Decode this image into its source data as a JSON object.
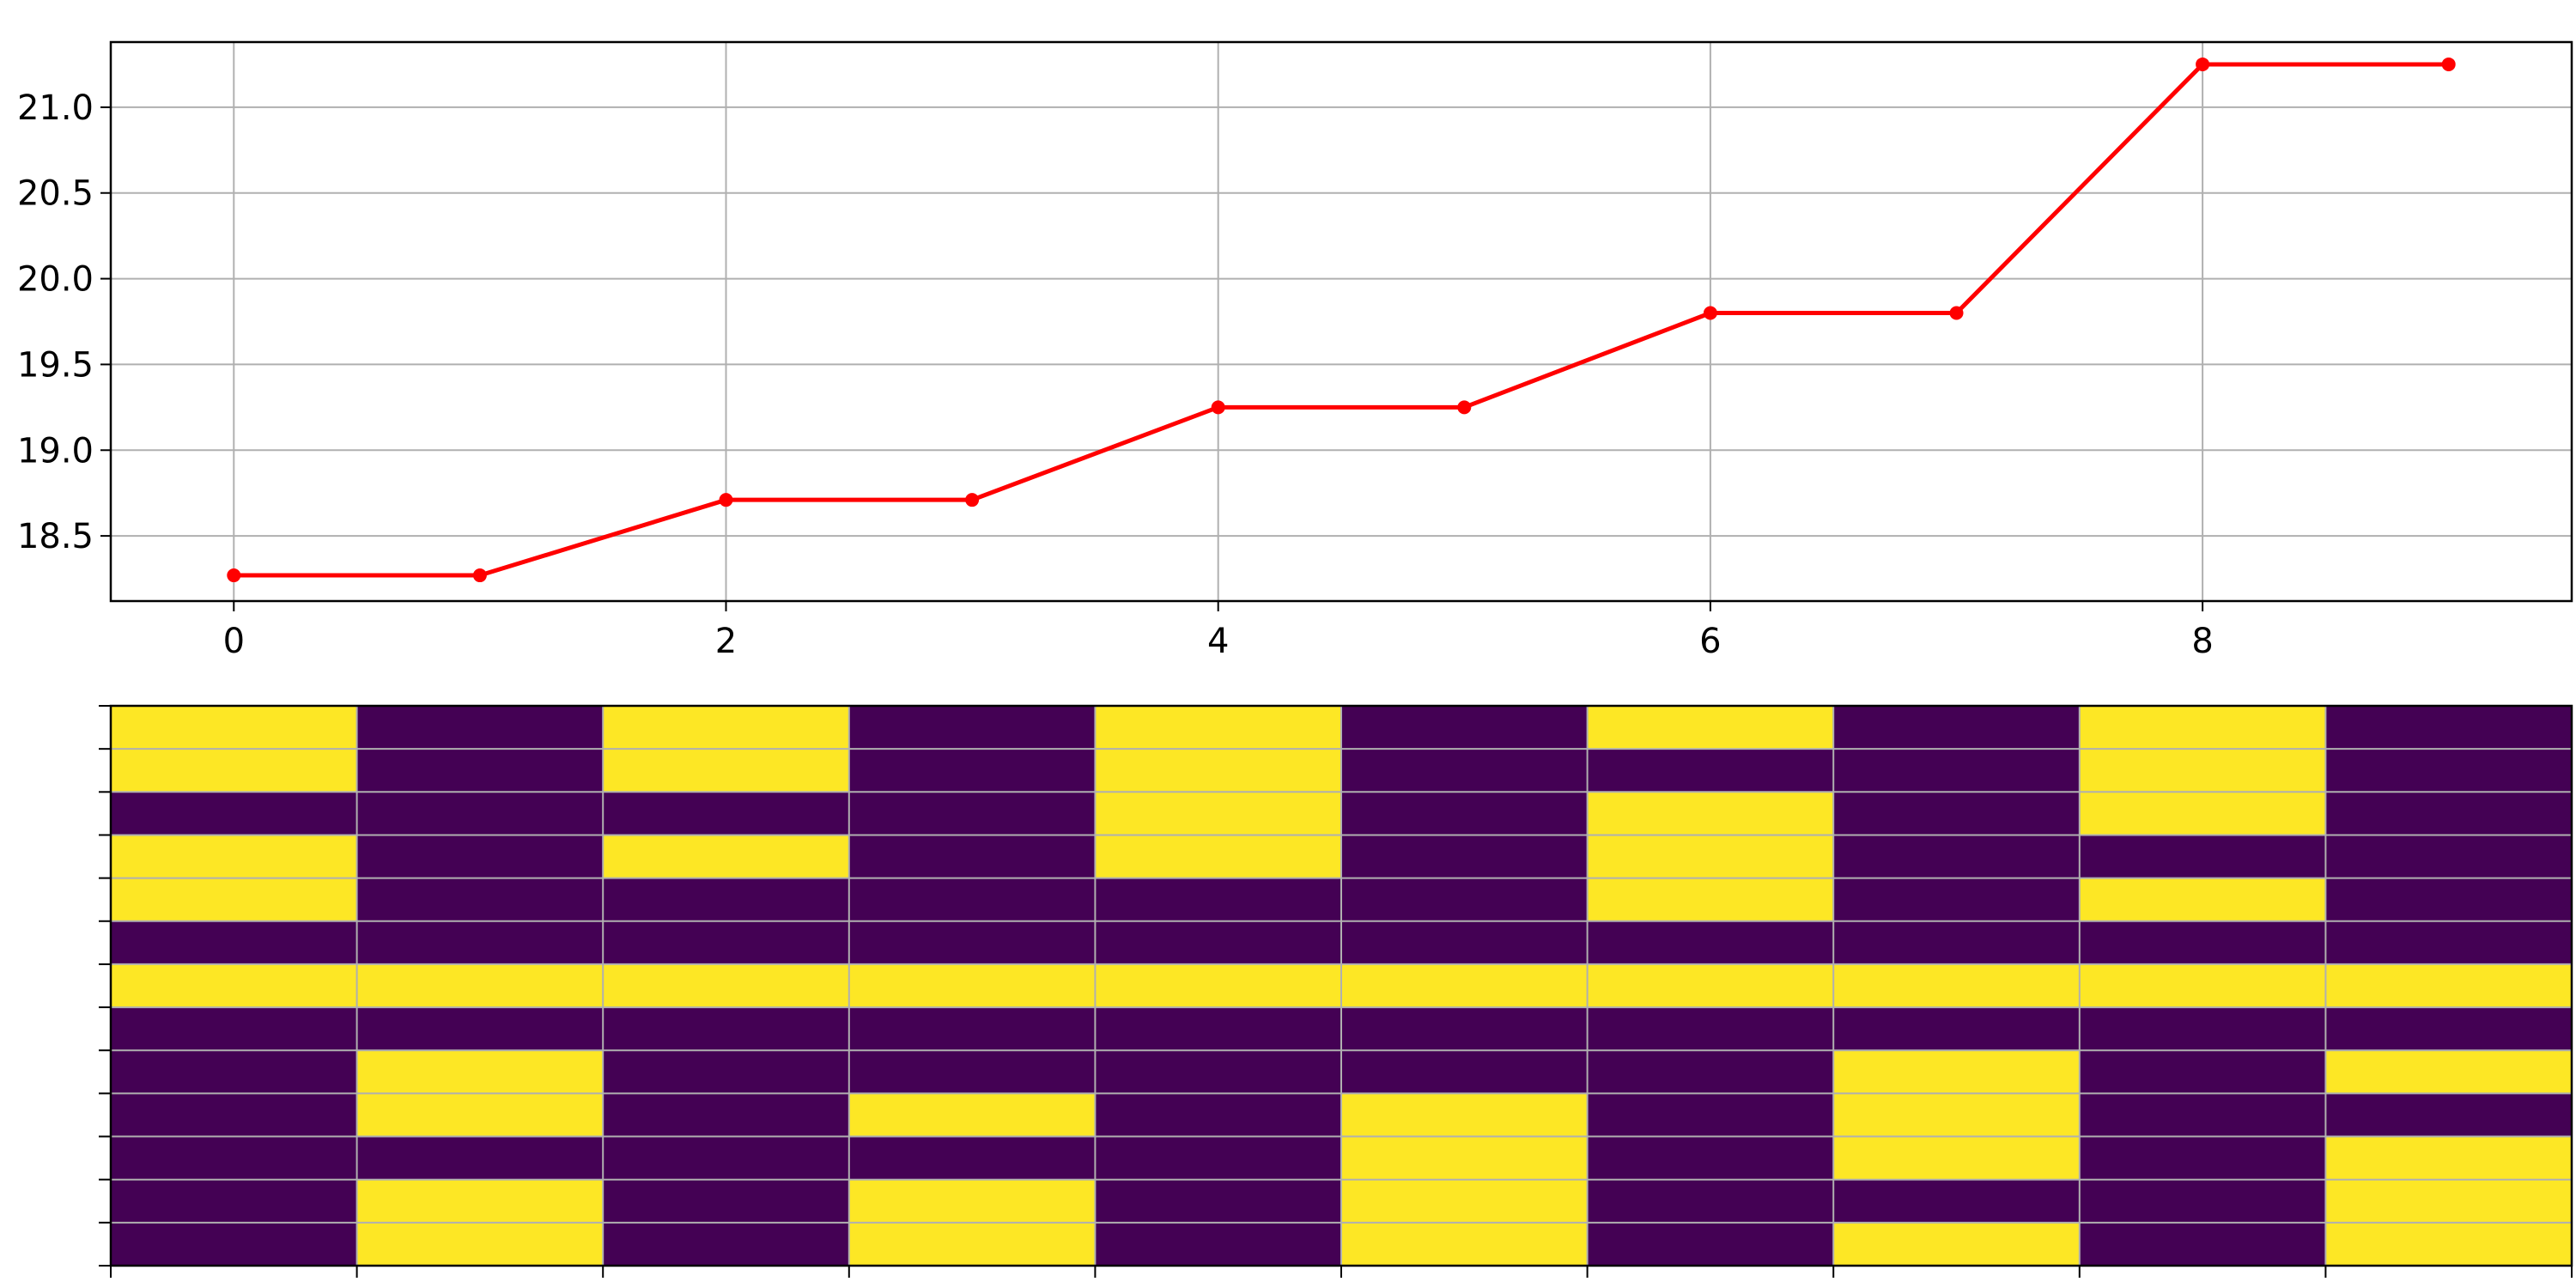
{
  "chart_data": [
    {
      "type": "line",
      "title": "",
      "xlabel": "",
      "ylabel": "",
      "x": [
        0,
        1,
        2,
        3,
        4,
        5,
        6,
        7,
        8,
        9
      ],
      "series": [
        {
          "values": [
            18.27,
            18.27,
            18.71,
            18.71,
            19.25,
            19.25,
            19.8,
            19.8,
            21.25,
            21.25
          ]
        }
      ],
      "xlim": [
        -0.5,
        9.5
      ],
      "ylim": [
        18.12,
        21.38
      ],
      "x_ticks": [
        0,
        2,
        4,
        6,
        8
      ],
      "x_tick_labels": [
        "0",
        "2",
        "4",
        "6",
        "8"
      ],
      "y_ticks": [
        18.5,
        19.0,
        19.5,
        20.0,
        20.5,
        21.0
      ],
      "y_tick_labels": [
        "18.5",
        "19.0",
        "19.5",
        "20.0",
        "20.5",
        "21.0"
      ],
      "grid": true,
      "markers": true,
      "colors": {
        "line": "#ff0000",
        "grid": "#b0b0b0"
      }
    },
    {
      "type": "heatmap",
      "title": "",
      "xlabel": "",
      "ylabel": "",
      "n_rows": 13,
      "n_cols": 10,
      "x_tick_count": 11,
      "y_tick_count": 14,
      "tick_labels_shown": false,
      "grid": true,
      "values": [
        [
          1,
          0,
          1,
          0,
          1,
          0,
          1,
          0,
          1,
          0
        ],
        [
          1,
          0,
          1,
          0,
          1,
          0,
          0,
          0,
          1,
          0
        ],
        [
          0,
          0,
          0,
          0,
          1,
          0,
          1,
          0,
          1,
          0
        ],
        [
          1,
          0,
          1,
          0,
          1,
          0,
          1,
          0,
          0,
          0
        ],
        [
          1,
          0,
          0,
          0,
          0,
          0,
          1,
          0,
          1,
          0
        ],
        [
          0,
          0,
          0,
          0,
          0,
          0,
          0,
          0,
          0,
          0
        ],
        [
          1,
          1,
          1,
          1,
          1,
          1,
          1,
          1,
          1,
          1
        ],
        [
          0,
          0,
          0,
          0,
          0,
          0,
          0,
          0,
          0,
          0
        ],
        [
          0,
          1,
          0,
          0,
          0,
          0,
          0,
          1,
          0,
          1
        ],
        [
          0,
          1,
          0,
          1,
          0,
          1,
          0,
          1,
          0,
          0
        ],
        [
          0,
          0,
          0,
          0,
          0,
          1,
          0,
          1,
          0,
          1
        ],
        [
          0,
          1,
          0,
          1,
          0,
          1,
          0,
          0,
          0,
          1
        ],
        [
          0,
          1,
          0,
          1,
          0,
          1,
          0,
          1,
          0,
          1
        ]
      ],
      "colors": {
        "low": "#440154",
        "high": "#fde725",
        "grid": "#b0b0b0"
      }
    }
  ]
}
